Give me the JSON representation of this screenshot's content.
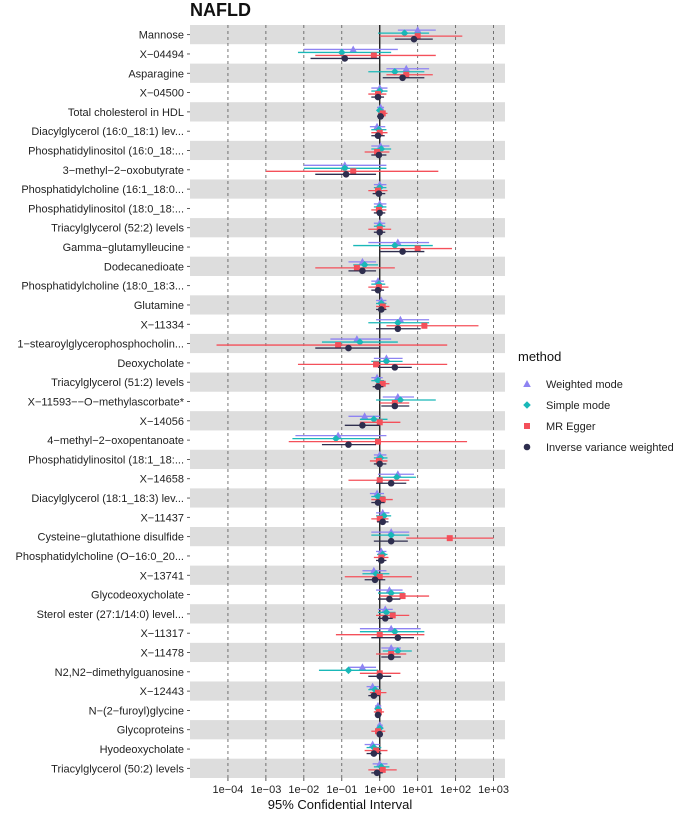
{
  "chart_data": {
    "type": "forest",
    "title": "NAFLD",
    "xlabel": "95% Confidential Interval",
    "x_scale": "log10",
    "xlim": [
      1e-05,
      2000
    ],
    "reference_line": 1,
    "x_ticks": [
      {
        "value": 0.0001,
        "label": "1e−04"
      },
      {
        "value": 0.001,
        "label": "1e−03"
      },
      {
        "value": 0.01,
        "label": "1e−02"
      },
      {
        "value": 0.1,
        "label": "1e−01"
      },
      {
        "value": 1,
        "label": "1e+00"
      },
      {
        "value": 10,
        "label": "1e+01"
      },
      {
        "value": 100,
        "label": "1e+02"
      },
      {
        "value": 1000,
        "label": "1e+03"
      }
    ],
    "legend": {
      "title": "method",
      "position": "right",
      "items": [
        {
          "key": "wm",
          "label": "Weighted mode",
          "color": "#8E83F2",
          "shape": "triangle"
        },
        {
          "key": "sm",
          "label": "Simple mode",
          "color": "#19B8B8",
          "shape": "diamond"
        },
        {
          "key": "egger",
          "label": "MR Egger",
          "color": "#F4505A",
          "shape": "square"
        },
        {
          "key": "ivw",
          "label": "Inverse variance weighted",
          "color": "#2E2E4E",
          "shape": "circle"
        }
      ]
    },
    "categories": [
      "Mannose",
      "X−04494",
      "Asparagine",
      "X−04500",
      "Total cholesterol in HDL",
      "Diacylglycerol (16:0_18:1) lev...",
      "Phosphatidylinositol (16:0_18:...",
      "3−methyl−2−oxobutyrate",
      "Phosphatidylcholine (16:1_18:0...",
      "Phosphatidylinositol (18:0_18:...",
      "Triacylglycerol (52:2) levels",
      "Gamma−glutamylleucine",
      "Dodecanedioate",
      "Phosphatidylcholine (18:0_18:3...",
      "Glutamine",
      "X−11334",
      "1−stearoylglycerophosphocholin...",
      "Deoxycholate",
      "Triacylglycerol (51:2) levels",
      "X−11593−−O−methylascorbate*",
      "X−14056",
      "4−methyl−2−oxopentanoate",
      "Phosphatidylinositol (18:1_18:...",
      "X−14658",
      "Diacylglycerol (18:1_18:3) lev...",
      "X−11437",
      "Cysteine−glutathione disulfide",
      "Phosphatidylcholine (O−16:0_20...",
      "X−13741",
      "Glycodeoxycholate",
      "Sterol ester (27:1/14:0) level...",
      "X−11317",
      "X−11478",
      "N2,N2−dimethylguanosine",
      "X−12443",
      "N−(2−furoyl)glycine",
      "Glycoproteins",
      "Hyodeoxycholate",
      "Triacylglycerol (50:2) levels"
    ],
    "series": [
      {
        "name": "Weighted mode",
        "estimates": [
          [
            10,
            3,
            30
          ],
          [
            0.2,
            0.01,
            3
          ],
          [
            5,
            1.5,
            20
          ],
          [
            1,
            0.6,
            1.6
          ],
          [
            1.05,
            0.85,
            1.3
          ],
          [
            0.85,
            0.55,
            1.4
          ],
          [
            1.05,
            0.6,
            1.8
          ],
          [
            0.12,
            0.01,
            1.5
          ],
          [
            1,
            0.7,
            1.5
          ],
          [
            1,
            0.7,
            1.5
          ],
          [
            1,
            0.7,
            1.4
          ],
          [
            3,
            0.5,
            20
          ],
          [
            0.35,
            0.15,
            0.8
          ],
          [
            0.9,
            0.6,
            1.3
          ],
          [
            1.1,
            0.8,
            1.5
          ],
          [
            3.5,
            0.8,
            20
          ],
          [
            0.25,
            0.05,
            2
          ],
          [
            1.5,
            0.7,
            4
          ],
          [
            0.85,
            0.6,
            1.2
          ],
          [
            3,
            1.2,
            8
          ],
          [
            0.4,
            0.15,
            1
          ],
          [
            0.08,
            0.006,
            1.5
          ],
          [
            1,
            0.7,
            1.5
          ],
          [
            3,
            0.9,
            8
          ],
          [
            0.85,
            0.55,
            1.3
          ],
          [
            1.2,
            0.8,
            1.8
          ],
          [
            2,
            0.6,
            6
          ],
          [
            1.1,
            0.8,
            1.5
          ],
          [
            0.7,
            0.35,
            1.5
          ],
          [
            1.8,
            0.8,
            4
          ],
          [
            1.4,
            0.9,
            2.2
          ],
          [
            2,
            0.3,
            12
          ],
          [
            2,
            1.1,
            3.6
          ],
          [
            0.35,
            0.15,
            0.8
          ],
          [
            0.65,
            0.45,
            0.95
          ],
          [
            0.9,
            0.75,
            1.1
          ],
          [
            1,
            0.85,
            1.2
          ],
          [
            0.65,
            0.4,
            1
          ],
          [
            1,
            0.65,
            1.6
          ]
        ]
      },
      {
        "name": "Simple mode",
        "estimates": [
          [
            4.5,
            0.9,
            20
          ],
          [
            0.1,
            0.007,
            2
          ],
          [
            2.5,
            0.5,
            15
          ],
          [
            1,
            0.6,
            1.6
          ],
          [
            1,
            0.85,
            1.25
          ],
          [
            0.95,
            0.6,
            1.5
          ],
          [
            1.1,
            0.6,
            2
          ],
          [
            0.12,
            0.01,
            1.5
          ],
          [
            1,
            0.7,
            1.5
          ],
          [
            1,
            0.7,
            1.5
          ],
          [
            1,
            0.7,
            1.4
          ],
          [
            2.5,
            0.2,
            25
          ],
          [
            0.4,
            0.2,
            0.9
          ],
          [
            0.95,
            0.6,
            1.4
          ],
          [
            1.1,
            0.8,
            1.5
          ],
          [
            3,
            0.5,
            20
          ],
          [
            0.3,
            0.03,
            3
          ],
          [
            1.5,
            0.6,
            4
          ],
          [
            0.9,
            0.6,
            1.3
          ],
          [
            3.5,
            0.8,
            30
          ],
          [
            0.7,
            0.3,
            1.6
          ],
          [
            0.07,
            0.005,
            1
          ],
          [
            1.05,
            0.7,
            1.6
          ],
          [
            2.8,
            0.9,
            9
          ],
          [
            0.9,
            0.6,
            1.35
          ],
          [
            1.3,
            0.8,
            2
          ],
          [
            2,
            0.6,
            6
          ],
          [
            1.2,
            0.85,
            1.6
          ],
          [
            0.8,
            0.35,
            1.8
          ],
          [
            2,
            0.9,
            4.5
          ],
          [
            1.5,
            0.9,
            2.6
          ],
          [
            2.5,
            0.3,
            15
          ],
          [
            3,
            1.2,
            7
          ],
          [
            0.15,
            0.025,
            0.9
          ],
          [
            0.75,
            0.5,
            1.1
          ],
          [
            0.9,
            0.75,
            1.1
          ],
          [
            1,
            0.85,
            1.25
          ],
          [
            0.7,
            0.45,
            1.1
          ],
          [
            1.1,
            0.7,
            1.8
          ]
        ]
      },
      {
        "name": "MR Egger",
        "estimates": [
          [
            10,
            1,
            150
          ],
          [
            0.7,
            0.02,
            30
          ],
          [
            5,
            1.5,
            25
          ],
          [
            0.9,
            0.5,
            1.5
          ],
          [
            1.2,
            0.9,
            1.6
          ],
          [
            1,
            0.6,
            1.6
          ],
          [
            0.85,
            0.4,
            1.8
          ],
          [
            0.2,
            0.001,
            35
          ],
          [
            0.9,
            0.5,
            1.6
          ],
          [
            0.95,
            0.6,
            1.5
          ],
          [
            1,
            0.5,
            2
          ],
          [
            10,
            1,
            80
          ],
          [
            0.25,
            0.02,
            2.5
          ],
          [
            0.95,
            0.5,
            1.7
          ],
          [
            1.2,
            0.8,
            1.8
          ],
          [
            15,
            1.5,
            400
          ],
          [
            0.08,
            5e-05,
            60
          ],
          [
            0.8,
            0.007,
            60
          ],
          [
            1.2,
            0.8,
            1.8
          ],
          [
            2.5,
            1,
            6
          ],
          [
            1,
            0.3,
            3.5
          ],
          [
            0.9,
            0.004,
            200
          ],
          [
            0.95,
            0.55,
            1.6
          ],
          [
            1,
            0.15,
            6
          ],
          [
            1.2,
            0.6,
            2.2
          ],
          [
            1,
            0.6,
            1.7
          ],
          [
            70,
            5,
            1000
          ],
          [
            1.1,
            0.7,
            1.7
          ],
          [
            1,
            0.12,
            7
          ],
          [
            4,
            1,
            20
          ],
          [
            2.2,
            0.8,
            6
          ],
          [
            1,
            0.07,
            15
          ],
          [
            2,
            0.8,
            5
          ],
          [
            1,
            0.3,
            3.5
          ],
          [
            0.9,
            0.55,
            1.5
          ],
          [
            0.95,
            0.7,
            1.3
          ],
          [
            0.9,
            0.6,
            1.4
          ],
          [
            0.8,
            0.4,
            1.6
          ],
          [
            1.2,
            0.5,
            2.8
          ]
        ]
      },
      {
        "name": "Inverse variance weighted",
        "estimates": [
          [
            8,
            2.5,
            25
          ],
          [
            0.12,
            0.015,
            1
          ],
          [
            4,
            1.2,
            15
          ],
          [
            0.9,
            0.6,
            1.3
          ],
          [
            1.05,
            0.85,
            1.3
          ],
          [
            0.9,
            0.6,
            1.35
          ],
          [
            0.95,
            0.6,
            1.5
          ],
          [
            0.13,
            0.02,
            0.8
          ],
          [
            0.95,
            0.65,
            1.4
          ],
          [
            1,
            0.7,
            1.4
          ],
          [
            1,
            0.7,
            1.4
          ],
          [
            4,
            1,
            15
          ],
          [
            0.35,
            0.15,
            0.8
          ],
          [
            0.9,
            0.6,
            1.3
          ],
          [
            1.1,
            0.8,
            1.5
          ],
          [
            3,
            0.8,
            12
          ],
          [
            0.15,
            0.02,
            1
          ],
          [
            2.5,
            0.9,
            7
          ],
          [
            0.9,
            0.65,
            1.25
          ],
          [
            2.5,
            1.1,
            6
          ],
          [
            0.35,
            0.12,
            1
          ],
          [
            0.15,
            0.03,
            0.8
          ],
          [
            1,
            0.7,
            1.5
          ],
          [
            2,
            0.8,
            5
          ],
          [
            0.9,
            0.6,
            1.35
          ],
          [
            1.2,
            0.85,
            1.7
          ],
          [
            2,
            0.7,
            5.5
          ],
          [
            1.1,
            0.8,
            1.5
          ],
          [
            0.75,
            0.4,
            1.4
          ],
          [
            1.8,
            0.9,
            3.5
          ],
          [
            1.4,
            0.9,
            2.2
          ],
          [
            3,
            0.6,
            8
          ],
          [
            2,
            1.1,
            3.6
          ],
          [
            1,
            0.5,
            2
          ],
          [
            0.7,
            0.5,
            1
          ],
          [
            0.9,
            0.75,
            1.1
          ],
          [
            1,
            0.85,
            1.2
          ],
          [
            0.7,
            0.45,
            1.1
          ],
          [
            0.85,
            0.6,
            1.2
          ]
        ]
      }
    ]
  }
}
